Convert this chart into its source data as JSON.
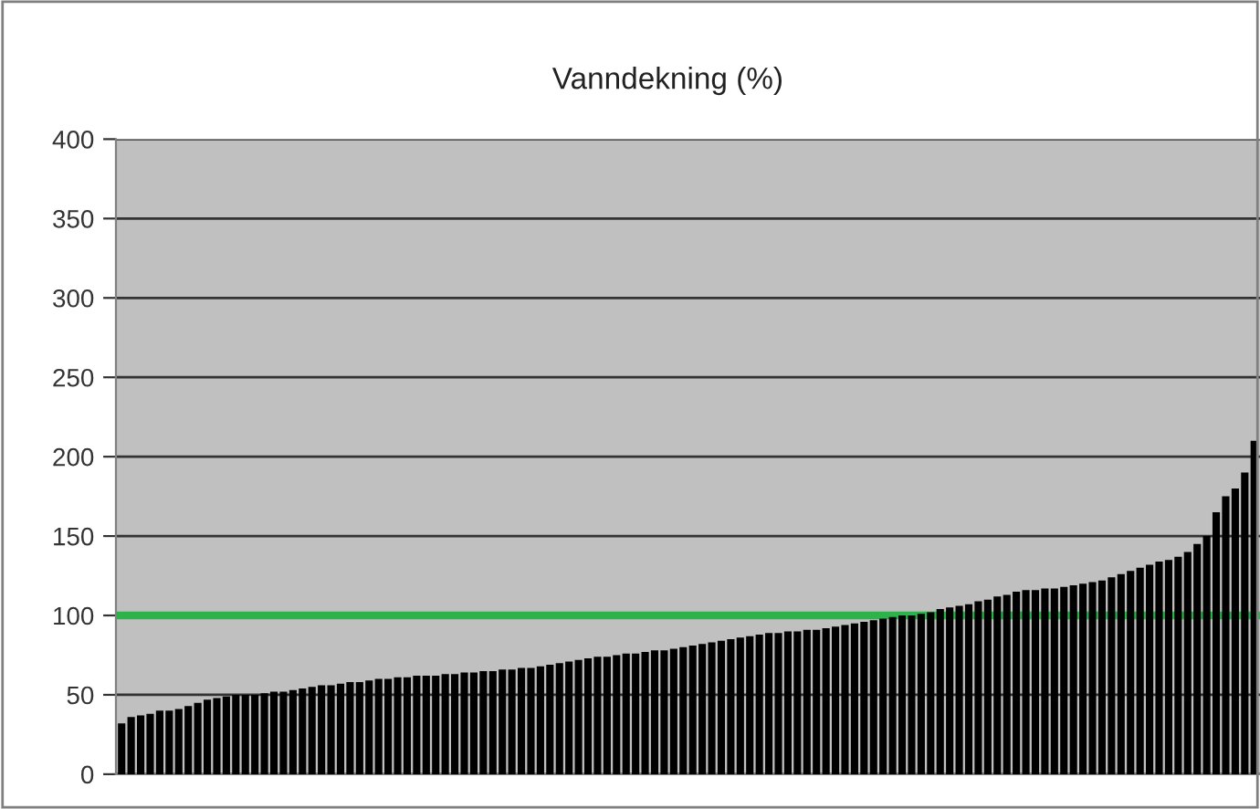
{
  "chart_data": {
    "type": "bar",
    "title": "Vanndekning (%)",
    "categories": [
      null,
      null,
      null,
      null,
      null,
      null,
      null,
      null,
      null,
      null,
      null,
      null,
      null,
      null,
      null,
      null,
      null,
      null,
      null,
      null,
      null,
      null,
      null,
      null,
      null,
      null,
      null,
      null,
      null,
      null,
      null,
      null,
      null,
      null,
      null,
      null,
      null,
      null,
      null,
      null,
      null,
      null,
      null,
      null,
      null,
      null,
      null,
      null,
      null,
      null,
      null,
      null,
      null,
      null,
      null,
      null,
      null,
      null,
      null,
      null,
      null,
      null,
      null,
      null,
      null,
      null,
      null,
      null,
      null,
      null,
      null,
      null,
      null,
      null,
      null,
      null,
      null,
      null,
      null,
      null,
      null,
      null,
      null,
      null,
      null,
      null,
      null,
      null,
      null,
      null,
      null,
      null,
      null,
      null,
      null,
      null,
      null,
      null,
      null,
      null,
      null,
      null,
      null,
      null,
      null,
      null,
      null,
      null,
      null,
      null,
      null,
      null,
      null,
      null,
      null,
      null,
      null,
      null,
      null,
      null
    ],
    "values": [
      32,
      36,
      37,
      38,
      40,
      40,
      41,
      43,
      45,
      47,
      48,
      49,
      50,
      50,
      50,
      51,
      52,
      52,
      53,
      54,
      55,
      56,
      56,
      57,
      58,
      58,
      59,
      60,
      60,
      61,
      61,
      62,
      62,
      62,
      63,
      63,
      64,
      64,
      65,
      65,
      66,
      66,
      67,
      67,
      68,
      69,
      70,
      71,
      72,
      73,
      74,
      74,
      75,
      76,
      76,
      77,
      78,
      78,
      79,
      80,
      81,
      82,
      83,
      84,
      85,
      86,
      87,
      88,
      89,
      89,
      90,
      90,
      91,
      91,
      92,
      93,
      94,
      95,
      96,
      97,
      98,
      99,
      100,
      100,
      101,
      102,
      104,
      105,
      106,
      107,
      109,
      110,
      112,
      113,
      115,
      116,
      116,
      117,
      117,
      118,
      119,
      120,
      121,
      122,
      124,
      126,
      128,
      130,
      132,
      134,
      135,
      137,
      140,
      145,
      150,
      165,
      175,
      180,
      190,
      210
    ],
    "color": "#000000",
    "ylim": [
      0,
      400
    ],
    "yticks": [
      0,
      50,
      100,
      150,
      200,
      250,
      300,
      350,
      400
    ],
    "grid": "y",
    "ref_lines": [
      {
        "axis": "y",
        "value": 100,
        "color": "#2db34a"
      }
    ]
  }
}
